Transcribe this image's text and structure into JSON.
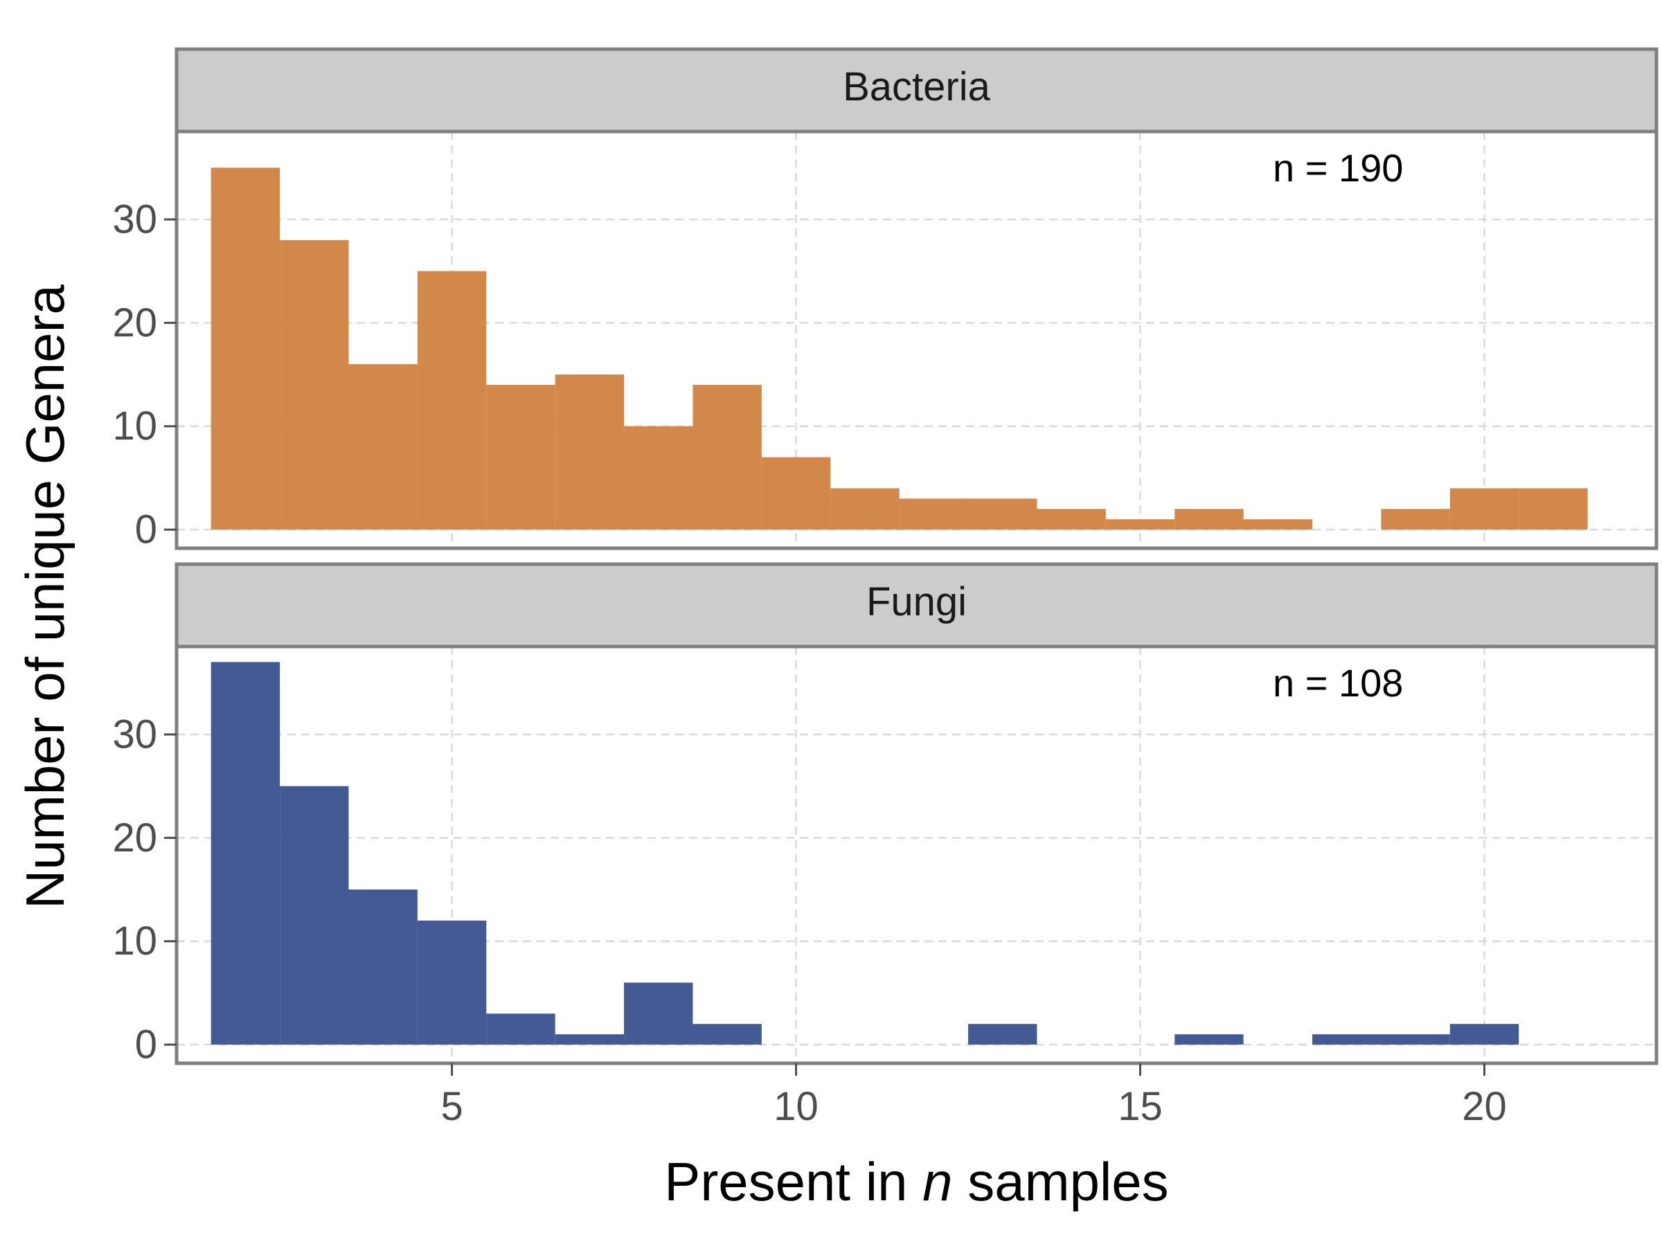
{
  "chart_data": {
    "type": "bar",
    "subtype": "histogram",
    "xlabel_parts": {
      "before": "Present in ",
      "italic": "n",
      "after": " samples"
    },
    "ylabel": "Number of unique Genera",
    "xlim": [
      1,
      22.5
    ],
    "ylim": [
      -1.8,
      38.5
    ],
    "x_ticks": [
      5,
      10,
      15,
      20
    ],
    "y_ticks": [
      0,
      10,
      20,
      30
    ],
    "bin_width": 1,
    "grid": true,
    "legend": "none",
    "facets": [
      {
        "name": "Bacteria",
        "annotation": "n = 190",
        "color": "#D2874B",
        "bin_centers": [
          2,
          3,
          4,
          5,
          6,
          7,
          8,
          9,
          10,
          11,
          12,
          13,
          14,
          15,
          16,
          17,
          18,
          19,
          20,
          21
        ],
        "values": [
          35,
          28,
          16,
          25,
          14,
          15,
          10,
          14,
          7,
          4,
          3,
          3,
          2,
          1,
          2,
          1,
          0,
          2,
          4,
          4
        ]
      },
      {
        "name": "Fungi",
        "annotation": "n = 108",
        "color": "#435A95",
        "bin_centers": [
          2,
          3,
          4,
          5,
          6,
          7,
          8,
          9,
          10,
          11,
          12,
          13,
          14,
          15,
          16,
          17,
          18,
          19,
          20
        ],
        "values": [
          37,
          25,
          15,
          12,
          3,
          1,
          6,
          2,
          0,
          0,
          0,
          2,
          0,
          0,
          1,
          0,
          1,
          1,
          2
        ]
      }
    ]
  }
}
